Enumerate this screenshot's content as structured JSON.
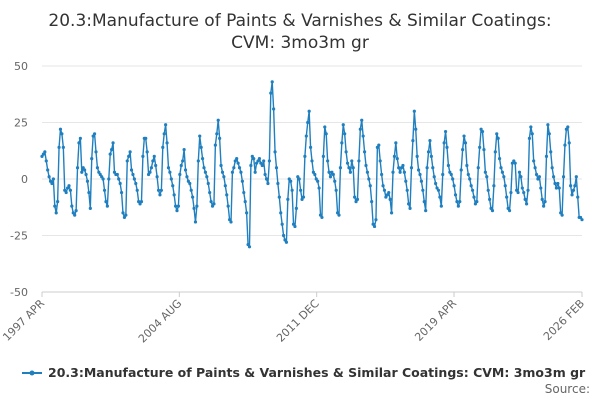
{
  "chart_data": {
    "type": "line",
    "title": [
      "20.3:Manufacture of Paints & Varnishes & Similar Coatings:",
      "CVM: 3mo3m gr"
    ],
    "xlabel": "",
    "ylabel": "",
    "x_tick_labels": [
      "1997 APR",
      "2004 AUG",
      "2011 DEC",
      "2019 APR",
      "2026 FEB"
    ],
    "y_ticks": [
      50,
      25,
      0,
      -25,
      -50
    ],
    "ylim": [
      -50,
      50
    ],
    "grid": true,
    "legend_position": "bottom",
    "color": "#1f7fbf",
    "x_start": "1997-04",
    "x_end": "2026-02",
    "series": [
      {
        "name": "20.3:Manufacture of Paints & Varnishes & Similar Coatings: CVM: 3mo3m gr",
        "values": [
          10,
          11,
          12,
          8,
          4,
          1,
          -1,
          -2,
          0,
          -12,
          -15,
          -10,
          14,
          22,
          20,
          14,
          -5,
          -6,
          -4,
          -3,
          -5,
          -12,
          -15,
          -16,
          -14,
          5,
          16,
          18,
          3,
          5,
          4,
          2,
          -1,
          -6,
          -13,
          9,
          19,
          20,
          12,
          5,
          3,
          2,
          1,
          0,
          -5,
          -10,
          -12,
          0,
          11,
          13,
          16,
          3,
          2,
          2,
          0,
          -2,
          -6,
          -15,
          -17,
          -16,
          8,
          10,
          12,
          4,
          2,
          0,
          -2,
          -5,
          -10,
          -11,
          -10,
          10,
          18,
          18,
          12,
          2,
          3,
          5,
          8,
          10,
          6,
          1,
          -5,
          -7,
          -5,
          14,
          20,
          24,
          16,
          5,
          3,
          0,
          -3,
          -7,
          -12,
          -14,
          -12,
          2,
          6,
          8,
          13,
          4,
          1,
          -1,
          -2,
          -5,
          -8,
          -13,
          -19,
          -12,
          8,
          19,
          14,
          9,
          5,
          3,
          1,
          -2,
          -6,
          -10,
          -12,
          -11,
          15,
          20,
          26,
          18,
          6,
          3,
          1,
          -3,
          -7,
          -12,
          -18,
          -19,
          3,
          5,
          8,
          9,
          7,
          5,
          3,
          -1,
          -6,
          -10,
          -15,
          -29,
          -30,
          6,
          10,
          9,
          3,
          7,
          8,
          9,
          7,
          6,
          8,
          2,
          0,
          -2,
          8,
          38,
          43,
          31,
          12,
          5,
          -2,
          -8,
          -15,
          -20,
          -25,
          -27,
          -28,
          -9,
          0,
          -1,
          -5,
          -20,
          -21,
          -13,
          1,
          0,
          -5,
          -9,
          -8,
          10,
          19,
          25,
          30,
          14,
          8,
          3,
          2,
          0,
          -1,
          -4,
          -16,
          -17,
          10,
          23,
          20,
          8,
          3,
          1,
          3,
          2,
          -1,
          -5,
          -15,
          -16,
          5,
          16,
          24,
          20,
          12,
          7,
          5,
          3,
          8,
          5,
          -8,
          -10,
          -9,
          8,
          22,
          26,
          19,
          12,
          6,
          3,
          0,
          -3,
          -10,
          -20,
          -21,
          -18,
          14,
          15,
          8,
          2,
          -3,
          -5,
          -8,
          -7,
          -6,
          -9,
          -15,
          3,
          10,
          16,
          9,
          5,
          3,
          5,
          6,
          3,
          -1,
          -5,
          -11,
          -13,
          5,
          17,
          30,
          22,
          10,
          4,
          2,
          -1,
          -5,
          -10,
          -14,
          5,
          12,
          17,
          10,
          5,
          1,
          -2,
          -4,
          -5,
          -8,
          -12,
          2,
          16,
          21,
          14,
          6,
          3,
          2,
          0,
          -3,
          -7,
          -10,
          -12,
          -10,
          4,
          13,
          19,
          16,
          6,
          2,
          0,
          -3,
          -5,
          -8,
          -11,
          -10,
          5,
          14,
          22,
          21,
          13,
          3,
          1,
          -5,
          -9,
          -13,
          -14,
          -3,
          12,
          20,
          18,
          9,
          5,
          3,
          1,
          -3,
          -8,
          -13,
          -14,
          -6,
          7,
          8,
          7,
          -5,
          -6,
          3,
          1,
          -4,
          -6,
          -9,
          -11,
          -5,
          18,
          23,
          20,
          8,
          5,
          2,
          0,
          1,
          -4,
          -9,
          -12,
          -10,
          10,
          24,
          20,
          12,
          5,
          1,
          -2,
          -4,
          -2,
          -4,
          -15,
          -16,
          1,
          15,
          22,
          23,
          16,
          -3,
          -7,
          -5,
          -3,
          1,
          -8,
          -17,
          -17,
          -18
        ]
      }
    ]
  },
  "source_label": "Source:"
}
